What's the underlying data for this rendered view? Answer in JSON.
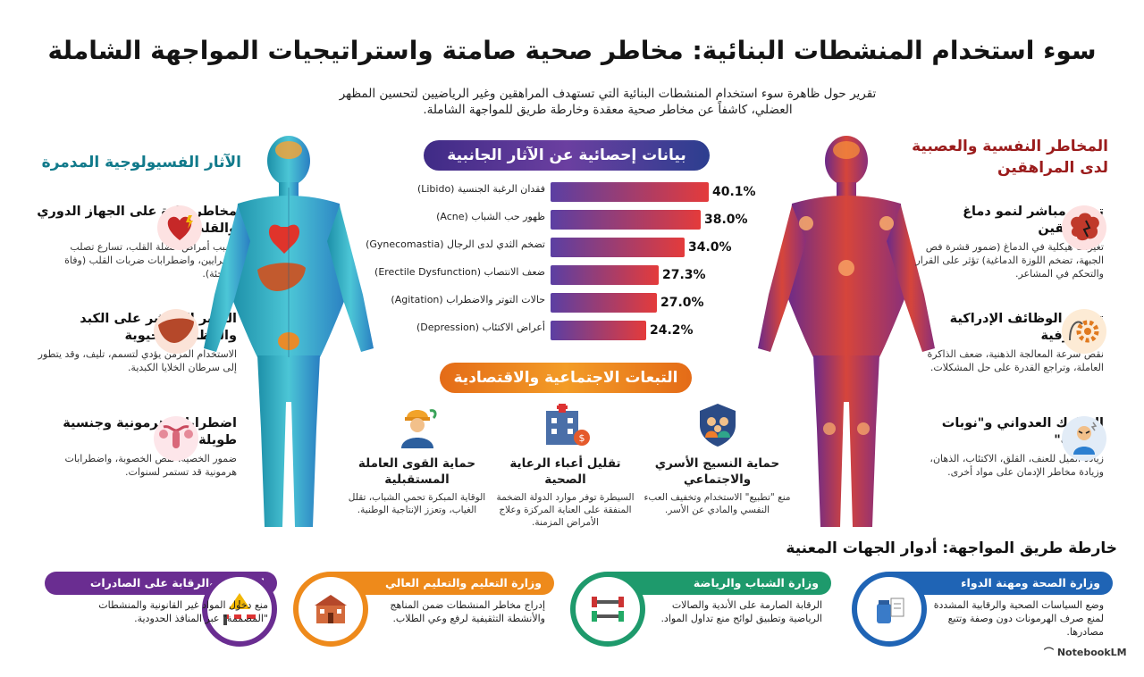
{
  "title": "سوء استخدام المنشطات البنائية: مخاطر صحية صامتة واستراتيجيات المواجهة الشاملة",
  "intro": "تقرير حول ظاهرة سوء استخدام المنشطات البنائية التي تستهدف المراهقين وغير الرياضيين لتحسين المظهر العضلي، كاشفاً عن مخاطر صحية معقدة وخارطة طريق للمواجهة الشاملة.",
  "left": {
    "heading": "الآثار الفسيولوجية المدمرة",
    "items": [
      {
        "title": "مخاطر حادة على الجهاز الدوري والقلب",
        "desc": "تسبب أمراض عضلة القلب، تسارع تصلب الشرايين، واضطرابات ضربات القلب (وفاة مفاجئة).",
        "icon": "heart-icon"
      },
      {
        "title": "التأثير المباشر على الكبد والوظائف الحيوية",
        "desc": "الاستخدام المزمن يؤدي لتسمم، تليف، وقد يتطور إلى سرطان الخلايا الكبدية.",
        "icon": "liver-icon"
      },
      {
        "title": "اضطرابات هرمونية وجنسية طويلة الأمد",
        "desc": "ضمور الخصية، نقص الخصوبة، واضطرابات هرمونية قد تستمر لسنوات.",
        "icon": "reproductive-icon"
      }
    ]
  },
  "right": {
    "heading": "المخاطر النفسية والعصبية لدى المراهقين",
    "items": [
      {
        "title": "تهديد مباشر لنمو دماغ المراهقين",
        "desc": "تغيرات هيكلية في الدماغ (ضمور قشرة فص الجبهة، تضخم اللوزة الدماغية) تؤثر على القرار والتحكم في المشاعر.",
        "icon": "brain-icon"
      },
      {
        "title": "تدهور الوظائف الإدراكية والمعرفية",
        "desc": "نقص سرعة المعالجة الذهنية، ضعف الذاكرة العاملة، وتراجع القدرة على حل المشكلات.",
        "icon": "cognitive-gear-icon"
      },
      {
        "title": "السلوك العدواني و\"نوبات الغضب\"",
        "desc": "زيادة الميل للعنف، القلق، الاكتئاب، الذهان، وزيادة مخاطر الإدمان على مواد أخرى.",
        "icon": "angry-person-icon"
      }
    ]
  },
  "stats": {
    "heading": "بيانات إحصائية عن الآثار الجانبية",
    "bar_color_start": "#5b3fa3",
    "bar_color_end": "#e43b3b"
  },
  "chart_data": {
    "type": "bar",
    "categories": [
      "فقدان الرغبة الجنسية (Libido)",
      "ظهور حب الشباب (Acne)",
      "تضخم الثدي لدى الرجال (Gynecomastia)",
      "ضعف الانتصاب (Erectile Dysfunction)",
      "حالات التوتر والاضطراب (Agitation)",
      "أعراض الاكتئاب (Depression)"
    ],
    "values": [
      40.1,
      38.0,
      34.0,
      27.3,
      27.0,
      24.2
    ],
    "value_labels": [
      "40.1%",
      "38.0%",
      "34.0%",
      "27.3%",
      "27.0%",
      "24.2%"
    ],
    "xlim": [
      0,
      48
    ],
    "grid": false
  },
  "social": {
    "heading": "التبعات الاجتماعية والاقتصادية",
    "items": [
      {
        "title": "حماية النسيج الأسري والاجتماعي",
        "desc": "منع \"تطبيع\" الاستخدام وتخفيف العبء النفسي والمادي عن الأسر.",
        "icon": "family-shield-icon"
      },
      {
        "title": "تقليل أعباء الرعاية الصحية",
        "desc": "السيطرة توفر موارد الدولة الضخمة المنفقة على العناية المركزة وعلاج الأمراض المزمنة.",
        "icon": "hospital-icon"
      },
      {
        "title": "حماية القوى العاملة المستقبلية",
        "desc": "الوقاية المبكرة تحمي الشباب، تقلل الغياب، وتعزز الإنتاجية الوطنية.",
        "icon": "worker-icon"
      }
    ]
  },
  "roadmap": {
    "heading": "خارطة طريق المواجهة: أدوار الجهات المعنية",
    "cards": [
      {
        "title": "وزارة الصحة ومهنة الدواء",
        "desc": "وضع السياسات الصحية والرقابية المشددة لمنع صرف الهرمونات دون وصفة وتتبع مصادرها.",
        "color": "#1f64b5",
        "icon": "medicine-icon"
      },
      {
        "title": "وزارة الشباب والرياضة",
        "desc": "الرقابة الصارمة على الأندية والصالات الرياضية وتطبيق لوائح منع تداول المواد.",
        "color": "#1e9a6c",
        "icon": "dumbbell-icon"
      },
      {
        "title": "وزارة التعليم والتعليم العالي",
        "desc": "إدراج مخاطر المنشطات ضمن المناهج والأنشطة التثقيفية لرفع وعي الطلاب.",
        "color": "#ee8a1b",
        "icon": "school-icon"
      },
      {
        "title": "الجمارك والرقابة على الصادرات",
        "desc": "منع دخول المواد غير القانونية والمنشطات \"المصممة\" عبر المنافذ الحدودية.",
        "color": "#6a2d91",
        "icon": "border-barrier-icon"
      }
    ]
  },
  "brand": "NotebookLM"
}
